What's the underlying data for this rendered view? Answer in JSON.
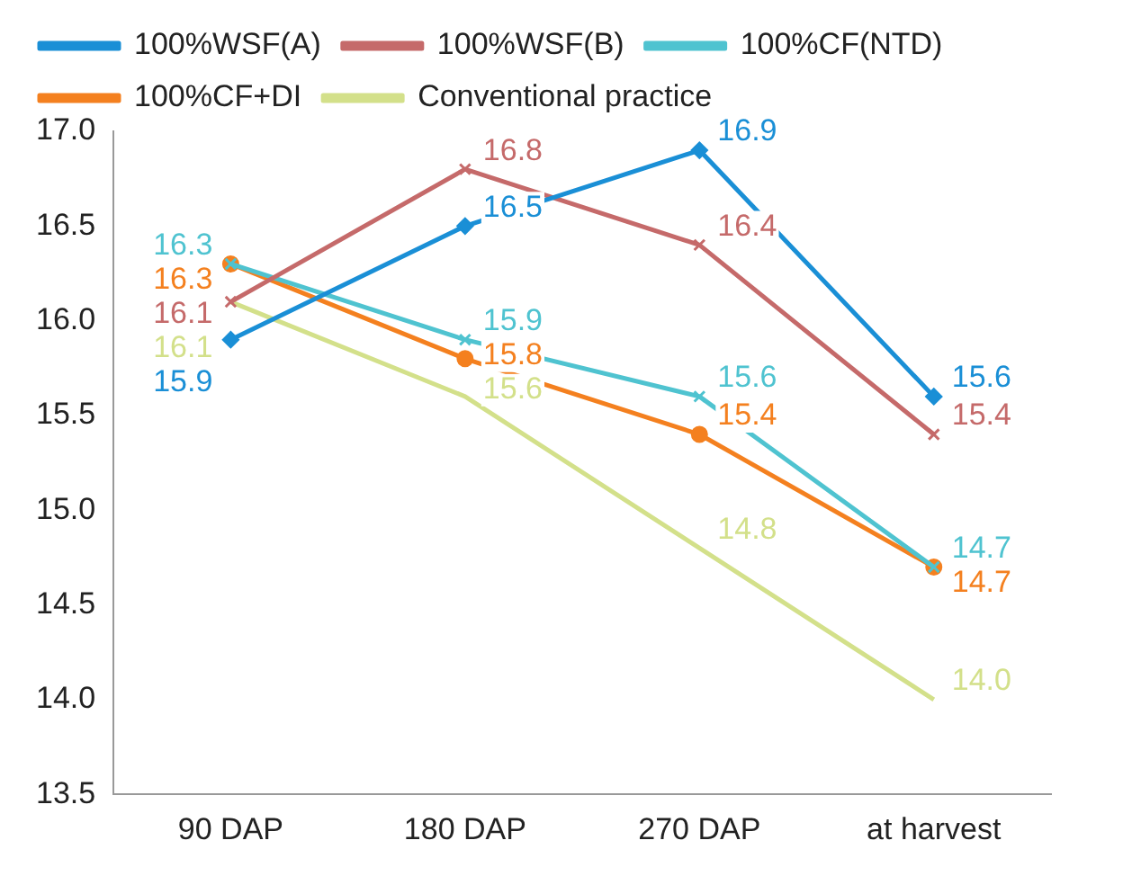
{
  "chart_data": {
    "type": "line",
    "categories": [
      "90 DAP",
      "180 DAP",
      "270 DAP",
      "at harvest"
    ],
    "series": [
      {
        "name": "100%WSF(A)",
        "color": "#1a8fd6",
        "marker": "diamond",
        "values": [
          15.9,
          16.5,
          16.9,
          15.6
        ],
        "value_labels": [
          "15.9",
          "16.5",
          "16.9",
          "15.6"
        ]
      },
      {
        "name": "100%WSF(B)",
        "color": "#c56a6a",
        "marker": "cross",
        "values": [
          16.1,
          16.8,
          16.4,
          15.4
        ],
        "value_labels": [
          "16.1",
          "16.8",
          "16.4",
          "15.4"
        ]
      },
      {
        "name": "100%CF(NTD)",
        "color": "#4fc3d0",
        "marker": "cross",
        "values": [
          16.3,
          15.9,
          15.6,
          14.7
        ],
        "value_labels": [
          "16.3",
          "15.9",
          "15.6",
          "14.7"
        ]
      },
      {
        "name": "100%CF+DI",
        "color": "#f4801f",
        "marker": "circle",
        "values": [
          16.3,
          15.8,
          15.4,
          14.7
        ],
        "value_labels": [
          "16.3",
          "15.8",
          "15.4",
          "14.7"
        ]
      },
      {
        "name": "Conventional practice",
        "color": "#d3e08a",
        "marker": "none",
        "values": [
          16.1,
          15.6,
          14.8,
          14.0
        ],
        "value_labels": [
          "16.1",
          "15.6",
          "14.8",
          "14.0"
        ]
      }
    ],
    "ylim": [
      13.5,
      17.0
    ],
    "yticks": [
      {
        "value": 13.5,
        "label": "13.5"
      },
      {
        "value": 14,
        "label": "14.0"
      },
      {
        "value": 14.5,
        "label": "14.5"
      },
      {
        "value": 15,
        "label": "15.0"
      },
      {
        "value": 15.5,
        "label": "15.5"
      },
      {
        "value": 16,
        "label": "16.0"
      },
      {
        "value": 16.5,
        "label": "16.5"
      },
      {
        "value": 17,
        "label": "17.0"
      }
    ],
    "grid": false,
    "legend": "top",
    "line_style": "solid"
  }
}
